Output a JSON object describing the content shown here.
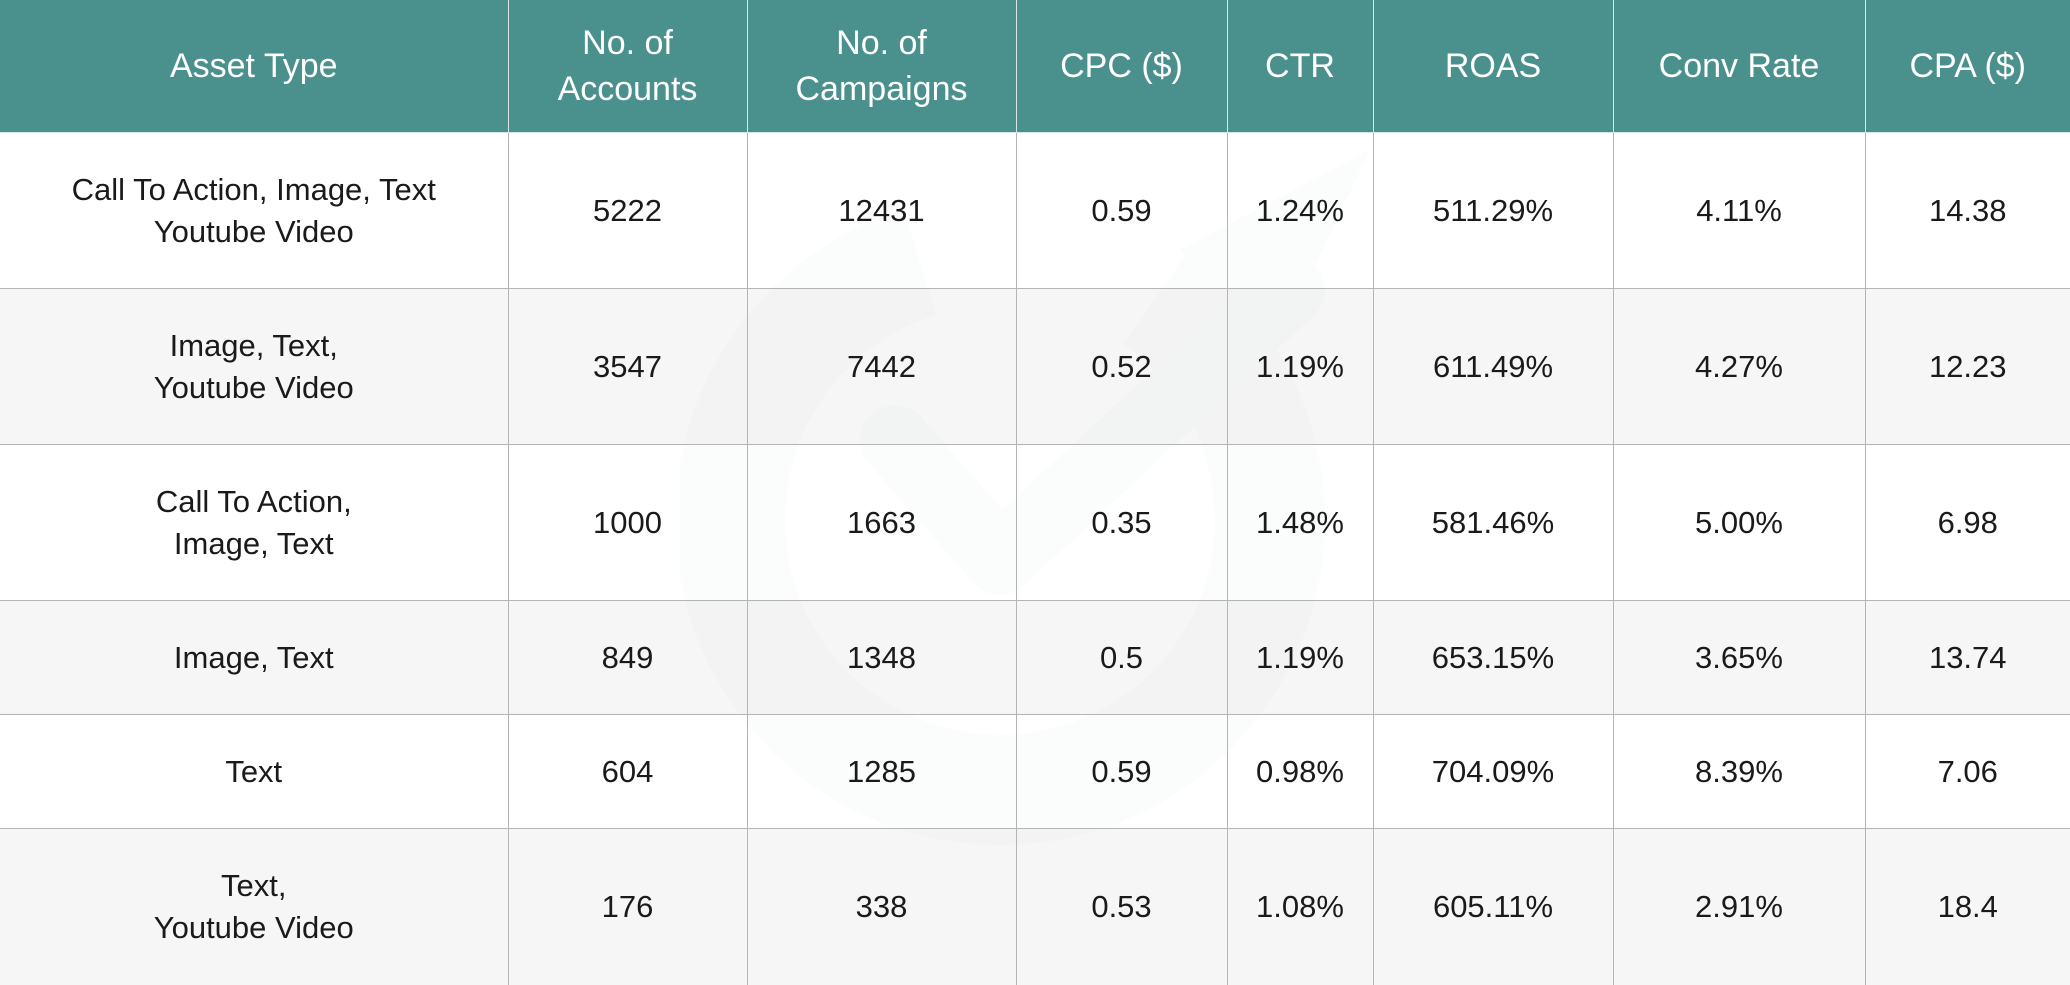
{
  "table": {
    "headers": [
      "Asset Type",
      "No. of\nAccounts",
      "No. of\nCampaigns",
      "CPC ($)",
      "CTR",
      "ROAS",
      "Conv Rate",
      "CPA ($)"
    ],
    "rows": [
      [
        "Call To Action, Image, Text\nYoutube Video",
        "5222",
        "12431",
        "0.59",
        "1.24%",
        "511.29%",
        "4.11%",
        "14.38"
      ],
      [
        "Image, Text,\nYoutube Video",
        "3547",
        "7442",
        "0.52",
        "1.19%",
        "611.49%",
        "4.27%",
        "12.23"
      ],
      [
        "Call To Action,\nImage, Text",
        "1000",
        "1663",
        "0.35",
        "1.48%",
        "581.46%",
        "5.00%",
        "6.98"
      ],
      [
        "Image, Text",
        "849",
        "1348",
        "0.5",
        "1.19%",
        "653.15%",
        "3.65%",
        "13.74"
      ],
      [
        "Text",
        "604",
        "1285",
        "0.59",
        "0.98%",
        "704.09%",
        "8.39%",
        "7.06"
      ],
      [
        "Text,\nYoutube Video",
        "176",
        "338",
        "0.53",
        "1.08%",
        "605.11%",
        "2.91%",
        "18.4"
      ]
    ]
  },
  "colors": {
    "header_bg": "#4a908d",
    "header_text": "#ffffff",
    "row_alt_bg": "#f4f4f4",
    "watermark_gray": "#eef0f1",
    "watermark_teal": "#e6f3f1"
  },
  "watermark": {
    "icon": "growth-arrow-logo-icon"
  }
}
